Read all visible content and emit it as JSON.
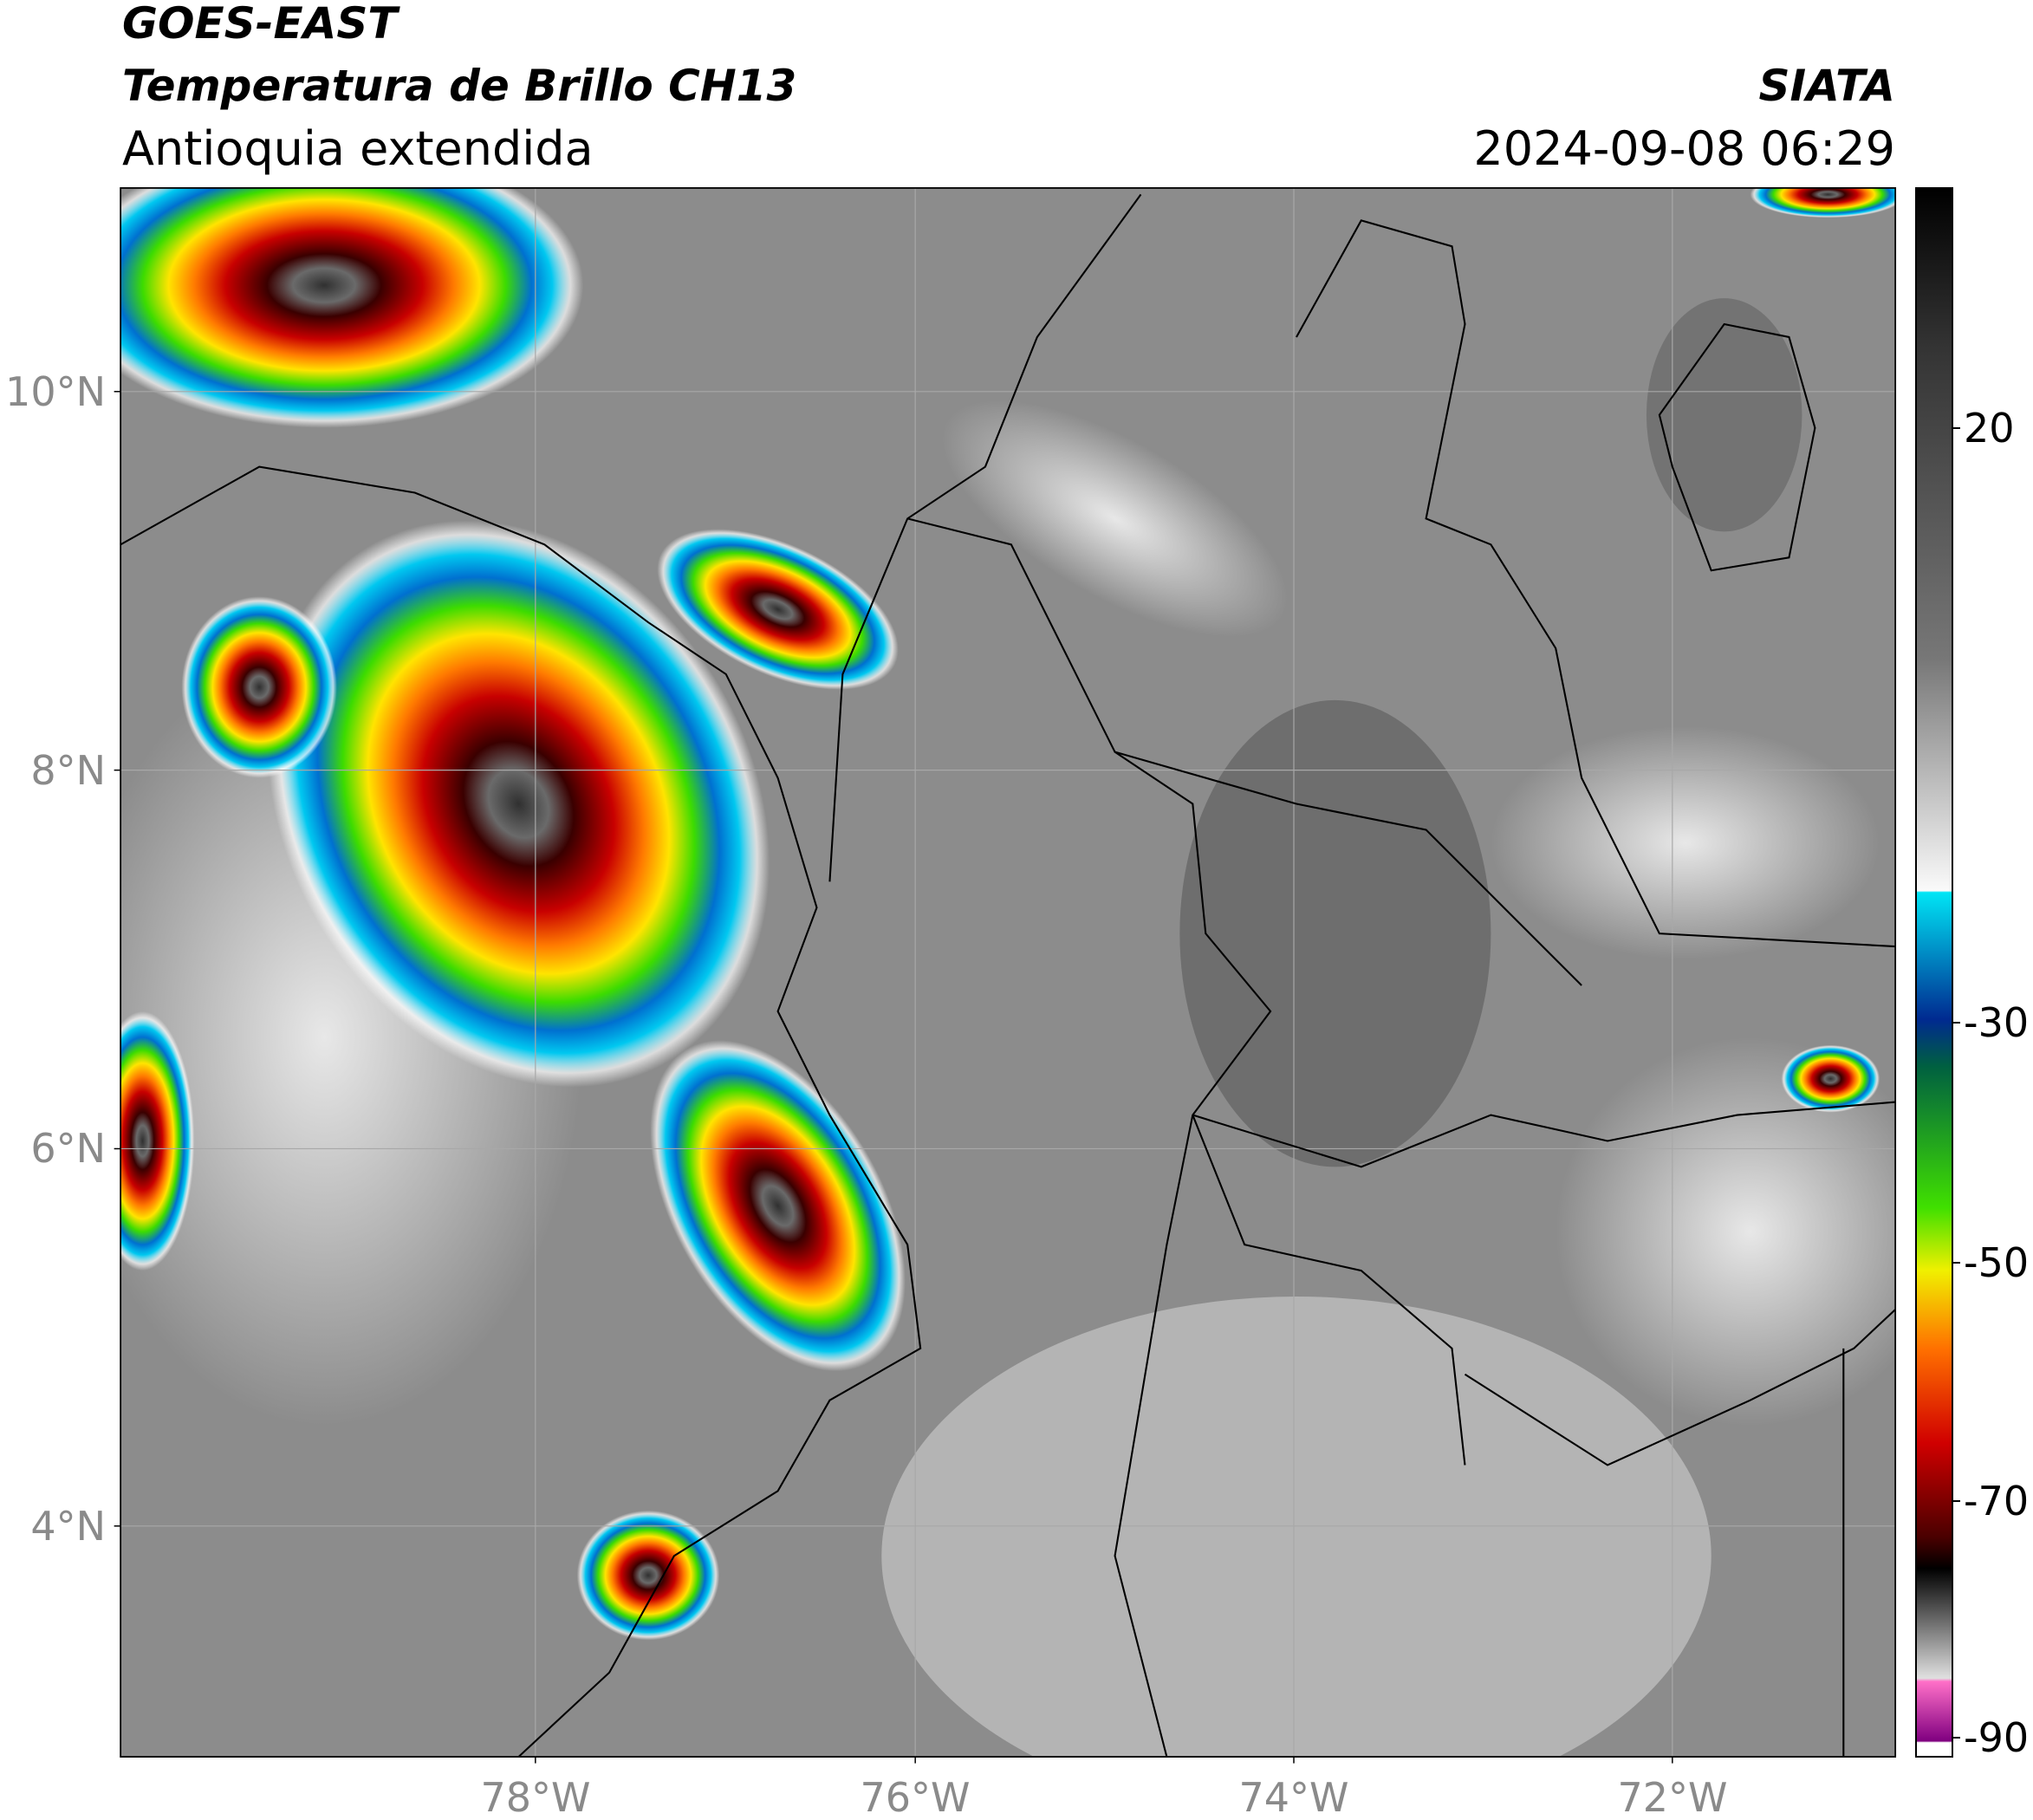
{
  "header": {
    "title": "GOES-EAST",
    "product": "Temperatura de Brillo CH13",
    "region": "Antioquia extendida",
    "source": "SIATA",
    "datetime": "2024-09-08 06:29"
  },
  "map": {
    "lat_labels": [
      "10°N",
      "8°N",
      "6°N",
      "4°N"
    ],
    "lon_labels": [
      "78°W",
      "76°W",
      "74°W",
      "72°W"
    ]
  },
  "colorbar": {
    "ticks": [
      20,
      -30,
      -50,
      -70,
      -90
    ]
  }
}
